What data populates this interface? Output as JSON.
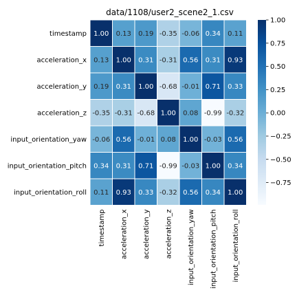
{
  "chart_data": {
    "type": "heatmap",
    "title": "data/1108/user2_scene2_1.csv",
    "rows": [
      "timestamp",
      "acceleration_x",
      "acceleration_y",
      "acceleration_z",
      "input_orientation_yaw",
      "input_orientation_pitch",
      "input_orientation_roll"
    ],
    "columns": [
      "timestamp",
      "acceleration_x",
      "acceleration_y",
      "acceleration_z",
      "input_orientation_yaw",
      "input_orientation_pitch",
      "input_orientation_roll"
    ],
    "values": [
      [
        1.0,
        0.13,
        0.19,
        -0.35,
        -0.06,
        0.34,
        0.11
      ],
      [
        0.13,
        1.0,
        0.31,
        -0.31,
        0.56,
        0.31,
        0.93
      ],
      [
        0.19,
        0.31,
        1.0,
        -0.68,
        -0.01,
        0.71,
        0.33
      ],
      [
        -0.35,
        -0.31,
        -0.68,
        1.0,
        0.08,
        -0.99,
        -0.32
      ],
      [
        -0.06,
        0.56,
        -0.01,
        0.08,
        1.0,
        -0.03,
        0.56
      ],
      [
        0.34,
        0.31,
        0.71,
        -0.99,
        -0.03,
        1.0,
        0.34
      ],
      [
        0.11,
        0.93,
        0.33,
        -0.32,
        0.56,
        0.34,
        1.0
      ]
    ],
    "value_format": "2 decimals",
    "colormap": "Blues",
    "colormap_stops": [
      "#f7fbff",
      "#deebf7",
      "#c6dbef",
      "#9ecae1",
      "#6baed6",
      "#4292c6",
      "#2171b5",
      "#08519c",
      "#08306b"
    ],
    "vmin": -0.99,
    "vmax": 1.0,
    "colorbar_ticks": [
      1.0,
      0.75,
      0.5,
      0.25,
      0.0,
      -0.25,
      -0.5,
      -0.75
    ],
    "colorbar_tick_labels": [
      "1.00",
      "0.75",
      "0.50",
      "0.25",
      "0.00",
      "−0.25",
      "−0.50",
      "−0.75"
    ],
    "colorbar": true,
    "grid_lines": "white"
  }
}
